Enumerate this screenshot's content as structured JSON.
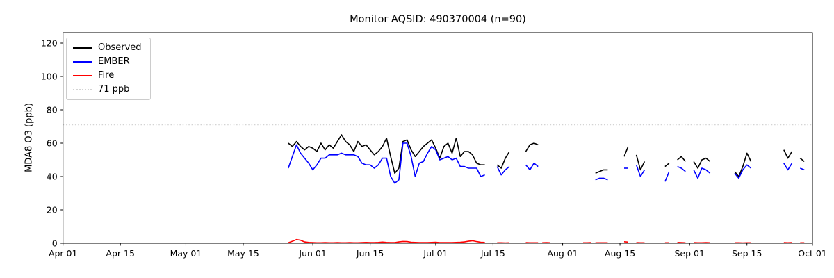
{
  "chart_data": {
    "type": "line",
    "title": "Monitor AQSID: 490370004 (n=90)",
    "ylabel": "MDA8 O3 (ppb)",
    "xlabel": "",
    "grid": false,
    "x_unit": "days since Apr 01",
    "xlim_days": [
      0,
      183
    ],
    "ylim": [
      0,
      126.25
    ],
    "yticks": [
      0,
      20,
      40,
      60,
      80,
      100,
      120
    ],
    "xticks": [
      {
        "day": 0,
        "label": "Apr 01"
      },
      {
        "day": 14,
        "label": "Apr 15"
      },
      {
        "day": 30,
        "label": "May 01"
      },
      {
        "day": 44,
        "label": "May 15"
      },
      {
        "day": 61,
        "label": "Jun 01"
      },
      {
        "day": 75,
        "label": "Jun 15"
      },
      {
        "day": 91,
        "label": "Jul 01"
      },
      {
        "day": 105,
        "label": "Jul 15"
      },
      {
        "day": 122,
        "label": "Aug 01"
      },
      {
        "day": 136,
        "label": "Aug 15"
      },
      {
        "day": 153,
        "label": "Sep 01"
      },
      {
        "day": 167,
        "label": "Sep 15"
      },
      {
        "day": 183,
        "label": "Oct 01"
      }
    ],
    "threshold": {
      "value": 71,
      "label": "71 ppb",
      "color": "#d3d3d3",
      "style": "dotted"
    },
    "legend": {
      "position": "upper left",
      "entries": [
        {
          "label": "Observed",
          "color": "#000000",
          "style": "solid"
        },
        {
          "label": "EMBER",
          "color": "#0000ff",
          "style": "solid"
        },
        {
          "label": "Fire",
          "color": "#ff0000",
          "style": "solid"
        },
        {
          "label": "71 ppb",
          "color": "#d3d3d3",
          "style": "dotted"
        }
      ]
    },
    "series": [
      {
        "key": "observed",
        "name": "Observed",
        "color": "#000000"
      },
      {
        "key": "ember",
        "name": "EMBER",
        "color": "#0000ff"
      },
      {
        "key": "fire",
        "name": "Fire",
        "color": "#ff0000"
      }
    ],
    "segments": [
      {
        "days": [
          55,
          56,
          57,
          58,
          59,
          60,
          61,
          62,
          63,
          64,
          65,
          66,
          67,
          68,
          69,
          70,
          71,
          72,
          73,
          74,
          75,
          76,
          77,
          78,
          79,
          80,
          81,
          82,
          83,
          84,
          85,
          86,
          87,
          88,
          89,
          90,
          91,
          92,
          93,
          94,
          95,
          96,
          97,
          98,
          99,
          100,
          101,
          102,
          103
        ],
        "observed": [
          60,
          58,
          61,
          58,
          56,
          58,
          57,
          55,
          60,
          56,
          59,
          57,
          61,
          65,
          61,
          59,
          55,
          61,
          58,
          59,
          56,
          53,
          55,
          58,
          63,
          52,
          42,
          45,
          61,
          62,
          56,
          52,
          55,
          58,
          60,
          62,
          57,
          51,
          58,
          60,
          54,
          63,
          52,
          55,
          55,
          53,
          48,
          47,
          47
        ],
        "ember": [
          45,
          52,
          59,
          54,
          51,
          48,
          44,
          47,
          51,
          51,
          53,
          53,
          53,
          54,
          53,
          53,
          53,
          52,
          48,
          47,
          47,
          45,
          47,
          51,
          51,
          40,
          36,
          38,
          60,
          60,
          52,
          40,
          48,
          49,
          54,
          58,
          56,
          50,
          51,
          52,
          50,
          51,
          46,
          46,
          45,
          45,
          45,
          40,
          41
        ],
        "fire": [
          0.3,
          1.2,
          2.2,
          1.8,
          0.8,
          0.5,
          0.4,
          0.3,
          0.3,
          0.4,
          0.3,
          0.3,
          0.4,
          0.3,
          0.3,
          0.4,
          0.3,
          0.3,
          0.4,
          0.5,
          0.4,
          0.4,
          0.5,
          0.7,
          0.5,
          0.4,
          0.4,
          0.8,
          1.1,
          1.0,
          0.6,
          0.5,
          0.4,
          0.4,
          0.4,
          0.5,
          0.6,
          0.4,
          0.4,
          0.4,
          0.4,
          0.5,
          0.6,
          0.8,
          1.2,
          1.5,
          1.0,
          0.6,
          0.5
        ]
      },
      {
        "days": [
          106,
          107,
          108,
          109
        ],
        "observed": [
          47,
          45,
          51,
          55
        ],
        "ember": [
          46,
          41,
          44,
          46
        ],
        "fire": [
          0.3,
          0.3,
          0.2,
          0.3
        ]
      },
      {
        "days": [
          113,
          114,
          115,
          116
        ],
        "observed": [
          55,
          59,
          60,
          59
        ],
        "ember": [
          47,
          44,
          48,
          46
        ],
        "fire": [
          0.4,
          0.3,
          0.3,
          0.3
        ]
      },
      {
        "days": [
          117,
          118,
          119
        ],
        "observed": [
          null,
          null,
          null
        ],
        "ember": [
          null,
          null,
          null
        ],
        "fire": [
          0.3,
          0.4,
          0.3
        ]
      },
      {
        "days": [
          127,
          128,
          129
        ],
        "observed": [
          null,
          null,
          null
        ],
        "ember": [
          null,
          null,
          null
        ],
        "fire": [
          0.3,
          0.3,
          0.4
        ]
      },
      {
        "days": [
          130,
          131,
          132,
          133
        ],
        "observed": [
          42,
          43,
          44,
          44
        ],
        "ember": [
          38,
          39,
          39,
          38
        ],
        "fire": [
          0.3,
          0.3,
          0.3,
          0.3
        ]
      },
      {
        "days": [
          137,
          138
        ],
        "observed": [
          52,
          58
        ],
        "ember": [
          45,
          45
        ],
        "fire": [
          0.9,
          0.7
        ]
      },
      {
        "days": [
          140,
          141,
          142
        ],
        "observed": [
          53,
          44,
          49
        ],
        "ember": [
          47,
          40,
          44
        ],
        "fire": [
          0.4,
          0.3,
          0.3
        ]
      },
      {
        "days": [
          147,
          148
        ],
        "observed": [
          46,
          48
        ],
        "ember": [
          37,
          43
        ],
        "fire": [
          0.3,
          0.3
        ]
      },
      {
        "days": [
          150,
          151,
          152
        ],
        "observed": [
          50,
          52,
          49
        ],
        "ember": [
          46,
          45,
          43
        ],
        "fire": [
          0.5,
          0.4,
          0.3
        ]
      },
      {
        "days": [
          154,
          155,
          156,
          157,
          158
        ],
        "observed": [
          49,
          45,
          50,
          51,
          49
        ],
        "ember": [
          44,
          39,
          45,
          44,
          42
        ],
        "fire": [
          0.4,
          0.3,
          0.3,
          0.4,
          0.3
        ]
      },
      {
        "days": [
          164,
          165,
          166,
          167,
          168
        ],
        "observed": [
          43,
          40,
          46,
          54,
          49
        ],
        "ember": [
          42,
          39,
          44,
          47,
          45
        ],
        "fire": [
          0.3,
          0.3,
          0.2,
          0.3,
          0.3
        ]
      },
      {
        "days": [
          176,
          177,
          178
        ],
        "observed": [
          56,
          51,
          55
        ],
        "ember": [
          48,
          44,
          48
        ],
        "fire": [
          0.4,
          0.3,
          0.4
        ]
      },
      {
        "days": [
          180,
          181
        ],
        "observed": [
          51,
          49
        ],
        "ember": [
          45,
          44
        ],
        "fire": [
          0.3,
          0.3
        ]
      }
    ]
  }
}
